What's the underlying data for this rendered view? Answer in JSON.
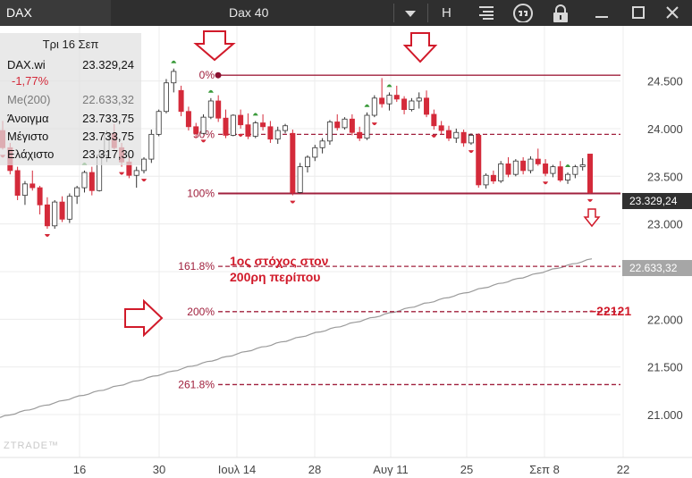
{
  "toolbar": {
    "symbol_tab": "DAX",
    "instrument_title": "Dax 40",
    "icons": [
      "dropdown-caret-icon",
      "h-line-tool-icon",
      "indicators-icon",
      "comment-icon",
      "lock-icon",
      "minimize-icon",
      "maximize-icon",
      "close-icon"
    ],
    "h_label": "H"
  },
  "info_panel": {
    "date": "Τρι 16 Σεπ",
    "symbol": "DAX.wi",
    "symbol_value": "23.329,24",
    "change": "-1,77%",
    "ma_label": "Me(200)",
    "ma_value": "22.633,32",
    "open_label": "Άνοιγμα",
    "open_value": "23.733,75",
    "high_label": "Μέγιστο",
    "high_value": "23.733,75",
    "low_label": "Ελάχιστο",
    "low_value": "23.317,30"
  },
  "price_tags": {
    "last": "23.329,24",
    "ma200": "22.633,32"
  },
  "annotations": {
    "target_line1": "1ος στόχος στον",
    "target_line2": "200ρη περίπου",
    "level_target": "~22121"
  },
  "watermark": "ZTRADE™",
  "colors": {
    "up": "#ffffff",
    "down": "#d42a3a",
    "fib": "#a0203d",
    "ma": "#9a9a9a",
    "arrow": "#d11a2a",
    "fractal_up": "#3a9a3a"
  },
  "chart_data": {
    "type": "candlestick",
    "y_axis": {
      "min": 21000,
      "max": 24600,
      "ticks": [
        21000,
        21500,
        22000,
        22500,
        23000,
        23500,
        24000,
        24500
      ],
      "tick_labels": [
        "21.000",
        "21.500",
        "22.000",
        "22.500",
        "23.000",
        "23.500",
        "24.000",
        "24.500"
      ]
    },
    "x_axis": {
      "labels": [
        "16",
        "30",
        "Ιουλ 14",
        "28",
        "Αυγ 11",
        "25",
        "Σεπ 8",
        "22"
      ]
    },
    "fibonacci": [
      {
        "label": "0%",
        "value": 24560,
        "style": "solid"
      },
      {
        "label": "50%",
        "value": 23940,
        "style": "dashed"
      },
      {
        "label": "100%",
        "value": 23320,
        "style": "solid"
      },
      {
        "label": "161.8%",
        "value": 22555,
        "style": "dashed"
      },
      {
        "label": "200%",
        "value": 22080,
        "style": "dashed"
      },
      {
        "label": "261.8%",
        "value": 21315,
        "style": "dashed"
      }
    ],
    "ma200": {
      "label": "Me(200)",
      "start": 20970,
      "end": 22633
    },
    "candles": [
      [
        23980,
        24080,
        23780,
        23800
      ],
      [
        23800,
        23850,
        23520,
        23560
      ],
      [
        23560,
        23600,
        23250,
        23300
      ],
      [
        23300,
        23450,
        23200,
        23420
      ],
      [
        23420,
        23560,
        23350,
        23380
      ],
      [
        23380,
        23400,
        23100,
        23200
      ],
      [
        23200,
        23280,
        22950,
        22980
      ],
      [
        22980,
        23250,
        22950,
        23230
      ],
      [
        23230,
        23290,
        23020,
        23050
      ],
      [
        23050,
        23320,
        23010,
        23290
      ],
      [
        23290,
        23400,
        23210,
        23380
      ],
      [
        23380,
        23560,
        23330,
        23540
      ],
      [
        23540,
        23600,
        23300,
        23350
      ],
      [
        23350,
        23780,
        23340,
        23720
      ],
      [
        23720,
        23980,
        23650,
        23950
      ],
      [
        23950,
        24050,
        23780,
        23800
      ],
      [
        23800,
        23850,
        23600,
        23650
      ],
      [
        23650,
        23700,
        23480,
        23510
      ],
      [
        23510,
        23600,
        23380,
        23560
      ],
      [
        23560,
        23700,
        23530,
        23680
      ],
      [
        23680,
        23990,
        23640,
        23940
      ],
      [
        23940,
        24200,
        23920,
        24180
      ],
      [
        24180,
        24520,
        24160,
        24480
      ],
      [
        24480,
        24630,
        24380,
        24600
      ],
      [
        24400,
        24450,
        24130,
        24180
      ],
      [
        24180,
        24230,
        23980,
        24020
      ],
      [
        24020,
        24060,
        23900,
        23950
      ],
      [
        23950,
        24150,
        23940,
        24120
      ],
      [
        24120,
        24320,
        24100,
        24290
      ],
      [
        24290,
        24350,
        24070,
        24110
      ],
      [
        24110,
        24200,
        23900,
        23930
      ],
      [
        23930,
        24150,
        23920,
        24140
      ],
      [
        24140,
        24200,
        24000,
        24040
      ],
      [
        24040,
        24160,
        23890,
        23920
      ],
      [
        23920,
        24080,
        23900,
        24060
      ],
      [
        24060,
        24150,
        23980,
        24020
      ],
      [
        24020,
        24080,
        23850,
        23890
      ],
      [
        23890,
        24020,
        23840,
        23980
      ],
      [
        23980,
        24050,
        23950,
        24030
      ],
      [
        23950,
        23990,
        23300,
        23330
      ],
      [
        23330,
        23640,
        23320,
        23600
      ],
      [
        23600,
        23720,
        23540,
        23700
      ],
      [
        23700,
        23830,
        23660,
        23800
      ],
      [
        23800,
        23900,
        23740,
        23870
      ],
      [
        23870,
        24090,
        23830,
        24070
      ],
      [
        24070,
        24150,
        23980,
        24010
      ],
      [
        24010,
        24120,
        23990,
        24100
      ],
      [
        24100,
        24150,
        23930,
        23960
      ],
      [
        23960,
        24020,
        23870,
        23900
      ],
      [
        23900,
        24170,
        23880,
        24140
      ],
      [
        24140,
        24350,
        24120,
        24320
      ],
      [
        24320,
        24530,
        24220,
        24260
      ],
      [
        24260,
        24380,
        24190,
        24350
      ],
      [
        24350,
        24450,
        24280,
        24310
      ],
      [
        24310,
        24340,
        24150,
        24200
      ],
      [
        24200,
        24320,
        24180,
        24290
      ],
      [
        24290,
        24380,
        24210,
        24320
      ],
      [
        24320,
        24400,
        24120,
        24150
      ],
      [
        24150,
        24200,
        23990,
        24030
      ],
      [
        24030,
        24080,
        23940,
        23980
      ],
      [
        23980,
        24030,
        23870,
        23900
      ],
      [
        23900,
        24000,
        23850,
        23960
      ],
      [
        23960,
        23990,
        23810,
        23850
      ],
      [
        23850,
        23950,
        23830,
        23930
      ],
      [
        23930,
        23950,
        23380,
        23410
      ],
      [
        23410,
        23530,
        23370,
        23510
      ],
      [
        23510,
        23560,
        23420,
        23450
      ],
      [
        23450,
        23660,
        23430,
        23630
      ],
      [
        23630,
        23700,
        23490,
        23520
      ],
      [
        23520,
        23680,
        23500,
        23660
      ],
      [
        23660,
        23700,
        23520,
        23560
      ],
      [
        23560,
        23710,
        23530,
        23680
      ],
      [
        23680,
        23790,
        23610,
        23630
      ],
      [
        23630,
        23680,
        23500,
        23530
      ],
      [
        23530,
        23620,
        23490,
        23600
      ],
      [
        23600,
        23660,
        23440,
        23460
      ],
      [
        23460,
        23540,
        23420,
        23520
      ],
      [
        23520,
        23620,
        23480,
        23600
      ],
      [
        23600,
        23690,
        23560,
        23620
      ],
      [
        23733,
        23733,
        23317,
        23329
      ]
    ],
    "fractal_up_idx": [
      11,
      23,
      28,
      34,
      49,
      52,
      76
    ],
    "fractal_down_idx": [
      0,
      6,
      16,
      19,
      27,
      32,
      39,
      50,
      58,
      63,
      73,
      79
    ]
  }
}
